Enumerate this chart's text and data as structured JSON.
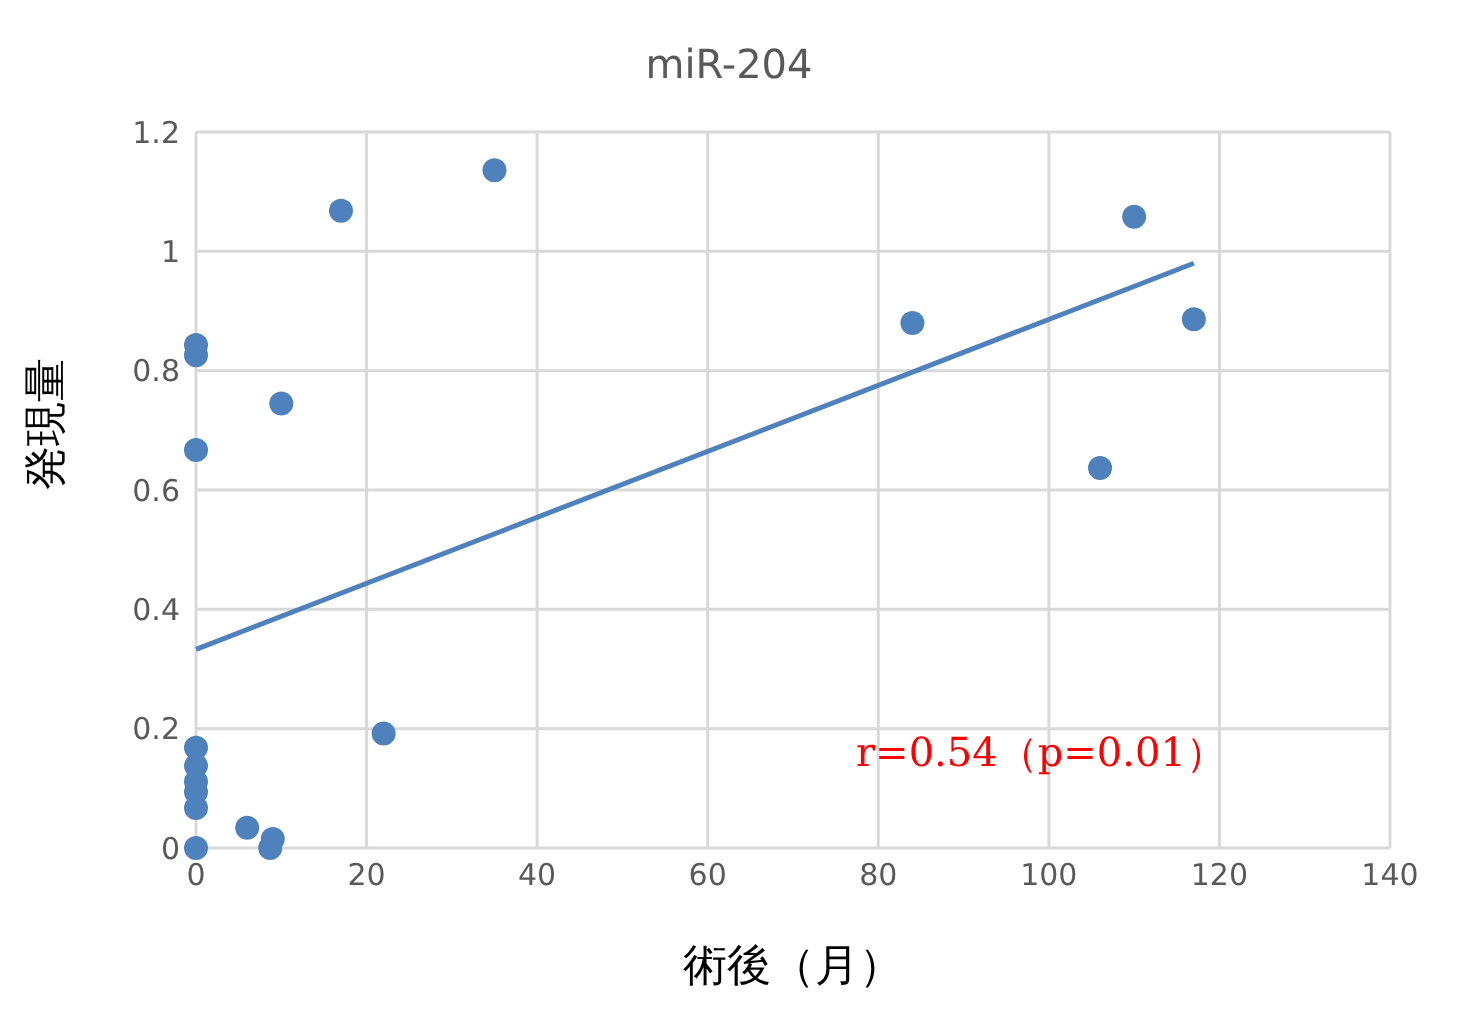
{
  "chart_data": {
    "type": "scatter",
    "title": "miR-204",
    "xlabel": "術後（月）",
    "ylabel": "発現量",
    "annotations": [
      "r=0.54（p=0.01）"
    ],
    "xlim": [
      0,
      140
    ],
    "xticks": [
      0,
      20,
      40,
      60,
      80,
      100,
      120,
      140
    ],
    "ylim": [
      0,
      1.2
    ],
    "yticks": [
      0,
      0.2,
      0.4,
      0.6,
      0.8,
      1,
      1.2
    ],
    "grid": true,
    "legend": false,
    "marker": "circle",
    "series": [
      {
        "color": "#4f81bd",
        "x": [
          0,
          0,
          0,
          0,
          0,
          0,
          0,
          0,
          0,
          6,
          9,
          8.7,
          10,
          17,
          22,
          35,
          84,
          106,
          110,
          117
        ],
        "values": [
          0.843,
          0.826,
          0.667,
          0.168,
          0.138,
          0.111,
          0.094,
          0.067,
          0,
          0.034,
          0.015,
          0,
          0.745,
          1.068,
          0.192,
          1.136,
          0.88,
          0.637,
          1.058,
          0.886
        ]
      },
      {
        "type": "line",
        "color": "#4f81bd",
        "line_style": "solid",
        "marker": "none",
        "x": [
          0,
          117
        ],
        "values": [
          0.333,
          0.98
        ]
      }
    ]
  }
}
